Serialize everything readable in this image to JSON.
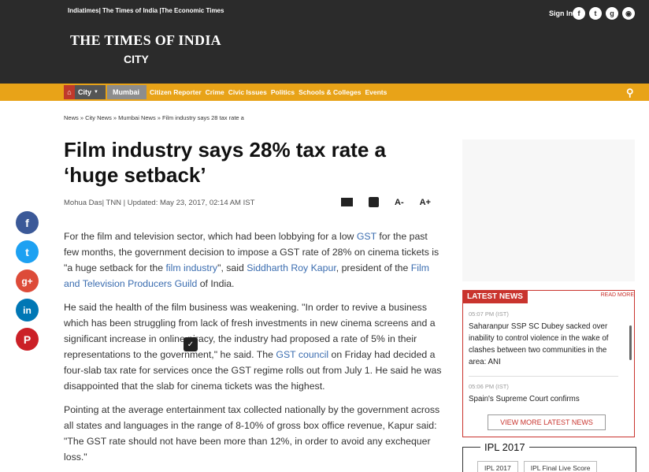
{
  "header": {
    "top_links": "Indiatimes| The Times of India |The Economic Times",
    "sign_in": "Sign In",
    "social": [
      "f",
      "t",
      "g",
      "rss"
    ],
    "brand": "THE TIMES OF INDIA",
    "brand_sub": "CITY"
  },
  "nav": {
    "home_icon": "⌂",
    "city": "City",
    "mumbai": "Mumbai",
    "items": [
      "Citizen Reporter",
      "Crime",
      "Civic Issues",
      "Politics",
      "Schools & Colleges",
      "Events"
    ]
  },
  "breadcrumb": "News » City News » Mumbai News » Film industry says 28 tax rate a",
  "article": {
    "headline": "Film industry says 28% tax rate a ‘huge setback’",
    "byline": "Mohua Das| TNN | Updated: May 23, 2017, 02:14 AM IST",
    "tools": {
      "font_down": "A-",
      "font_up": "A+"
    },
    "p1": {
      "t1": "For the film and television sector, which had been lobbying for a low ",
      "l1": "GST",
      "t2": " for the past few months, the government decision to impose a GST rate of 28% on cinema tickets is \"a huge setback for the ",
      "l2": "film industry",
      "t3": "\", said ",
      "l3": "Siddharth Roy Kapur",
      "t4": ", president of the ",
      "l4": "Film and Television Producers Guild",
      "t5": " of India."
    },
    "p2": {
      "t1": "He said the health of the film business was weakening. \"In order to revive a business which has been struggling from lack of fresh investments in new cinema screens and a significant increase in online piracy, the industry had proposed a rate of 5% in their representations to the government,\" he said. The ",
      "l1": "GST council",
      "t2": " on Friday had decided a four-slab tax rate for services once the GST regime rolls out from July 1. He said he was disappointed that the slab for cinema tickets was the highest."
    },
    "p3": "Pointing at the average entertainment tax collected nationally by the government across all states and languages in the range of 8-10% of gross box office revenue, Kapur said: \"The GST rate should not have been more than 12%, in order to avoid any exchequer loss.\""
  },
  "latest_news": {
    "title": "LATEST NEWS",
    "read_more": "READ MORE",
    "items": [
      {
        "time": "05:07 PM (IST)",
        "title": "Saharanpur SSP SC Dubey sacked over inability to control violence in the wake of clashes between two communities in the area: ANI"
      },
      {
        "time": "05:06 PM (IST)",
        "title": "Spain's Supreme Court confirms"
      }
    ],
    "view_more": "VIEW MORE LATEST NEWS"
  },
  "ipl": {
    "title": "IPL 2017",
    "tags": [
      "IPL 2017",
      "IPL Final Live Score"
    ]
  },
  "colors": {
    "accent": "#e8a318",
    "brand_red": "#c9342e",
    "link": "#3b6db0"
  }
}
